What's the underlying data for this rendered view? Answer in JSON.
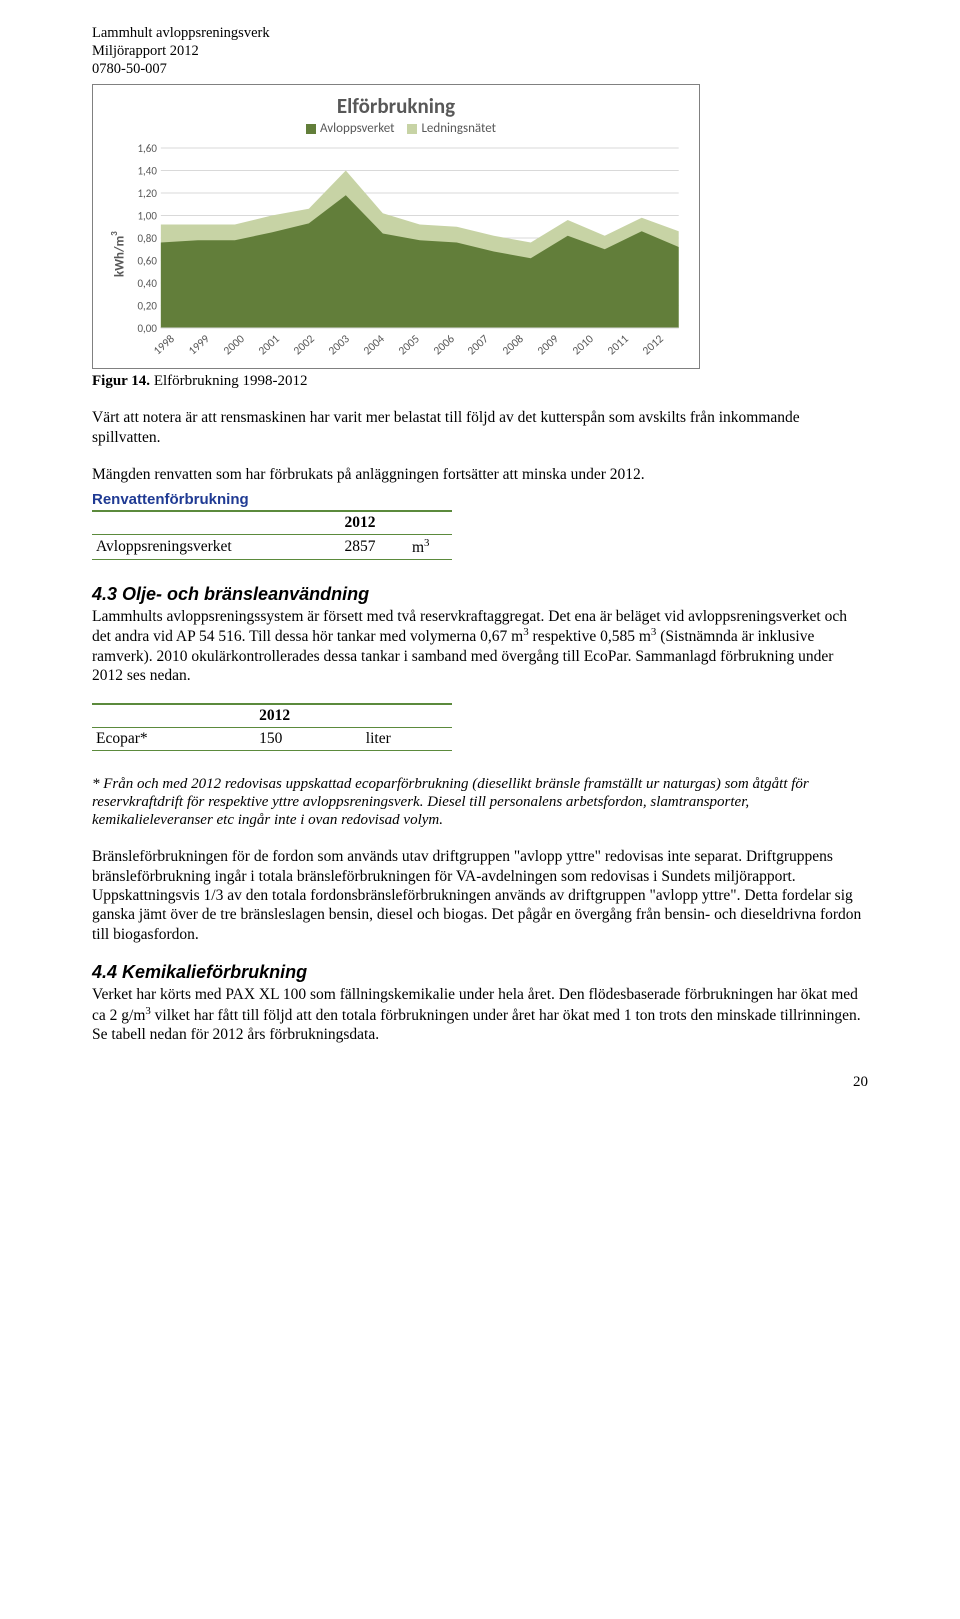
{
  "header": {
    "line1": "Lammhult avloppsreningsverk",
    "line2": "Miljörapport 2012",
    "line3": "0780-50-007"
  },
  "chart": {
    "title": "Elförbrukning",
    "ylabel": "kWh/m3",
    "legend": {
      "series1": "Avloppsverket",
      "series2": "Ledningsnätet"
    },
    "colors": {
      "series1_fill": "#627e3a",
      "series2_fill": "#c7d3a5",
      "grid": "#d9d9d9",
      "axis_text": "#585858",
      "bg": "#ffffff"
    },
    "yticks": [
      "0,00",
      "0,20",
      "0,40",
      "0,60",
      "0,80",
      "1,00",
      "1,20",
      "1,40",
      "1,60"
    ],
    "ylim": [
      0,
      1.6
    ],
    "categories": [
      "1998",
      "1999",
      "2000",
      "2001",
      "2002",
      "2003",
      "2004",
      "2005",
      "2006",
      "2007",
      "2008",
      "2009",
      "2010",
      "2011",
      "2012"
    ],
    "series1_values": [
      0.76,
      0.78,
      0.78,
      0.85,
      0.93,
      1.18,
      0.84,
      0.78,
      0.76,
      0.68,
      0.62,
      0.82,
      0.7,
      0.86,
      0.72
    ],
    "stacked_top": [
      0.92,
      0.92,
      0.92,
      1.0,
      1.06,
      1.4,
      1.02,
      0.92,
      0.9,
      0.82,
      0.76,
      0.96,
      0.82,
      0.98,
      0.86
    ]
  },
  "caption": {
    "label": "Figur 14.",
    "text": " Elförbrukning 1998-2012"
  },
  "p1": "Värt att notera är att rensmaskinen har varit mer belastat till följd av det kutterspån som avskilts från inkommande spillvatten.",
  "p2": "Mängden renvatten som har förbrukats på anläggningen fortsätter att minska under 2012.",
  "table1": {
    "title": "Renvattenförbrukning",
    "year": "2012",
    "row_label": "Avloppsreningsverket",
    "value": "2857",
    "unit_html": "m<sup>3</sup>"
  },
  "section43": {
    "heading": "4.3 Olje- och bränsleanvändning",
    "text_html": "Lammhults avloppsreningssystem är försett med två reservkraftaggregat. Det ena är beläget vid avloppsreningsverket och det andra vid AP 54 516. Till dessa hör tankar med volymerna 0,67 m<sup>3</sup> respektive 0,585 m<sup>3</sup> (Sistnämnda är inklusive ramverk). 2010 okulärkontrollerades dessa tankar i samband med övergång till EcoPar. Sammanlagd förbrukning under 2012 ses nedan."
  },
  "table2": {
    "year": "2012",
    "row_label": "Ecopar*",
    "value": "150",
    "unit": "liter"
  },
  "footnote": "* Från och med 2012 redovisas uppskattad ecoparförbrukning (diesellikt bränsle framställt ur naturgas) som åtgått för reservkraftdrift för respektive yttre avloppsreningsverk. Diesel till personalens arbetsfordon, slamtransporter, kemikalieleveranser etc ingår inte i ovan redovisad volym.",
  "p3": "Bränsleförbrukningen för de fordon som används utav driftgruppen \"avlopp yttre\" redovisas inte separat. Driftgruppens bränsleförbrukning ingår i totala bränsleförbrukningen för VA-avdelningen som redovisas i Sundets miljörapport. Uppskattningsvis 1/3 av den totala fordonsbränsleförbrukningen används av driftgruppen \"avlopp yttre\". Detta fordelar sig ganska jämt över de tre bränsleslagen bensin, diesel och biogas. Det pågår en övergång från bensin- och dieseldrivna fordon till biogasfordon.",
  "section44": {
    "heading": "4.4 Kemikalieförbrukning",
    "text_html": "Verket har körts med PAX XL 100 som fällningskemikalie under hela året. Den flödesbaserade förbrukningen har ökat med ca 2 g/m<sup>3</sup> vilket har fått till följd att den totala förbrukningen under året har ökat med 1 ton trots den minskade tillrinningen. Se tabell nedan för 2012 års förbrukningsdata."
  },
  "pagenum": "20"
}
